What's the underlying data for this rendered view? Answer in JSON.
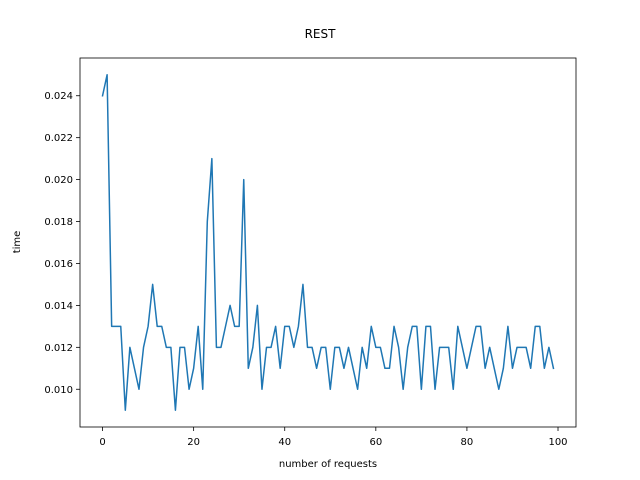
{
  "chart_data": {
    "type": "line",
    "title": "REST",
    "xlabel": "number of requests",
    "ylabel": "time",
    "xlim": [
      -4.95,
      103.95
    ],
    "ylim": [
      0.0082,
      0.0258
    ],
    "xticks": [
      0,
      20,
      40,
      60,
      80,
      100
    ],
    "xtick_labels": [
      "0",
      "20",
      "40",
      "60",
      "80",
      "100"
    ],
    "yticks": [
      0.01,
      0.012,
      0.014,
      0.016,
      0.018,
      0.02,
      0.022,
      0.024
    ],
    "ytick_labels": [
      "0.010",
      "0.012",
      "0.014",
      "0.016",
      "0.018",
      "0.020",
      "0.022",
      "0.024"
    ],
    "grid": false,
    "line_color": "#1f77b4",
    "series": [
      {
        "x": [
          0,
          1,
          2,
          3,
          4,
          5,
          6,
          7,
          8,
          9,
          10,
          11,
          12,
          13,
          14,
          15,
          16,
          17,
          18,
          19,
          20,
          21,
          22,
          23,
          24,
          25,
          26,
          27,
          28,
          29,
          30,
          31,
          32,
          33,
          34,
          35,
          36,
          37,
          38,
          39,
          40,
          41,
          42,
          43,
          44,
          45,
          46,
          47,
          48,
          49,
          50,
          51,
          52,
          53,
          54,
          55,
          56,
          57,
          58,
          59,
          60,
          61,
          62,
          63,
          64,
          65,
          66,
          67,
          68,
          69,
          70,
          71,
          72,
          73,
          74,
          75,
          76,
          77,
          78,
          79,
          80,
          81,
          82,
          83,
          84,
          85,
          86,
          87,
          88,
          89,
          90,
          91,
          92,
          93,
          94,
          95,
          96,
          97,
          98,
          99
        ],
        "y": [
          0.024,
          0.025,
          0.013,
          0.013,
          0.013,
          0.009,
          0.012,
          0.011,
          0.01,
          0.012,
          0.013,
          0.015,
          0.013,
          0.013,
          0.012,
          0.012,
          0.009,
          0.012,
          0.012,
          0.01,
          0.011,
          0.013,
          0.01,
          0.018,
          0.021,
          0.012,
          0.012,
          0.013,
          0.014,
          0.013,
          0.013,
          0.02,
          0.011,
          0.012,
          0.014,
          0.01,
          0.012,
          0.012,
          0.013,
          0.011,
          0.013,
          0.013,
          0.012,
          0.013,
          0.015,
          0.012,
          0.012,
          0.011,
          0.012,
          0.012,
          0.01,
          0.012,
          0.012,
          0.011,
          0.012,
          0.011,
          0.01,
          0.012,
          0.011,
          0.013,
          0.012,
          0.012,
          0.011,
          0.011,
          0.013,
          0.012,
          0.01,
          0.012,
          0.013,
          0.013,
          0.01,
          0.013,
          0.013,
          0.01,
          0.012,
          0.012,
          0.012,
          0.01,
          0.013,
          0.012,
          0.011,
          0.012,
          0.013,
          0.013,
          0.011,
          0.012,
          0.011,
          0.01,
          0.011,
          0.013,
          0.011,
          0.012,
          0.012,
          0.012,
          0.011,
          0.013,
          0.013,
          0.011,
          0.012,
          0.011
        ]
      }
    ]
  }
}
